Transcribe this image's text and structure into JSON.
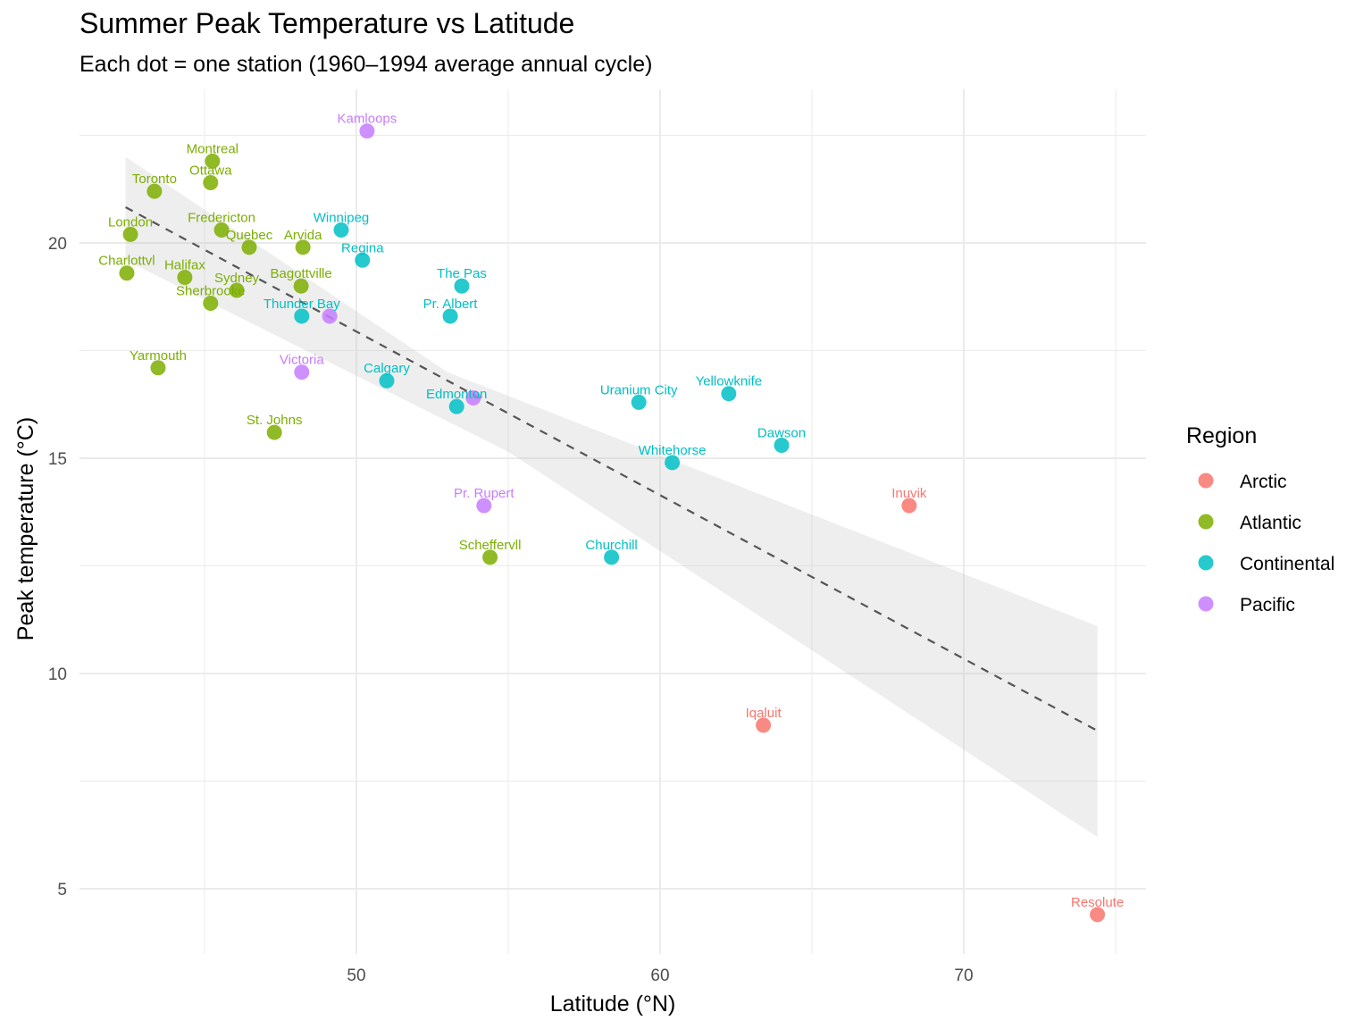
{
  "chart_data": {
    "type": "scatter",
    "title": "Summer Peak Temperature vs Latitude",
    "subtitle": "Each dot = one station (1960–1994 average annual cycle)",
    "xlabel": "Latitude (°N)",
    "ylabel": "Peak temperature (°C)",
    "xlim": [
      41.6,
      75.9
    ],
    "ylim": [
      3.5,
      23.3
    ],
    "xticks": [
      50,
      60,
      70
    ],
    "yticks": [
      5,
      10,
      15,
      20
    ],
    "grid": true,
    "legend": {
      "title": "Region",
      "position": "right",
      "entries": [
        {
          "name": "Arctic",
          "color": "#F8766D"
        },
        {
          "name": "Atlantic",
          "color": "#7CAE00"
        },
        {
          "name": "Continental",
          "color": "#00BFC4"
        },
        {
          "name": "Pacific",
          "color": "#C77CFF"
        }
      ]
    },
    "trend": {
      "style": "dashed linear fit with confidence band",
      "x": [
        42.4,
        74.4
      ],
      "y": [
        20.83,
        8.67
      ],
      "band_lower": [
        19.6,
        6.2
      ],
      "band_upper": [
        22.0,
        11.1
      ]
    },
    "points": [
      {
        "label": "Kamloops",
        "region": "Pacific",
        "x": 50.35,
        "y": 22.6
      },
      {
        "label": "Montreal",
        "region": "Atlantic",
        "x": 45.26,
        "y": 21.9
      },
      {
        "label": "Ottawa",
        "region": "Atlantic",
        "x": 45.2,
        "y": 21.4
      },
      {
        "label": "Toronto",
        "region": "Atlantic",
        "x": 43.35,
        "y": 21.2
      },
      {
        "label": "London",
        "region": "Atlantic",
        "x": 42.56,
        "y": 20.2
      },
      {
        "label": "Fredericton",
        "region": "Atlantic",
        "x": 45.56,
        "y": 20.3
      },
      {
        "label": "Quebec",
        "region": "Atlantic",
        "x": 46.47,
        "y": 19.9
      },
      {
        "label": "Arvida",
        "region": "Atlantic",
        "x": 48.24,
        "y": 19.9
      },
      {
        "label": "Winnipeg",
        "region": "Continental",
        "x": 49.5,
        "y": 20.3
      },
      {
        "label": "Regina",
        "region": "Continental",
        "x": 50.2,
        "y": 19.6
      },
      {
        "label": "Charlottvl",
        "region": "Atlantic",
        "x": 42.44,
        "y": 19.3
      },
      {
        "label": "Halifax",
        "region": "Atlantic",
        "x": 44.35,
        "y": 19.2
      },
      {
        "label": "Sydney",
        "region": "Atlantic",
        "x": 46.06,
        "y": 18.9
      },
      {
        "label": "Bagottville",
        "region": "Atlantic",
        "x": 48.18,
        "y": 19.0
      },
      {
        "label": "Sherbrooke",
        "region": "Atlantic",
        "x": 45.2,
        "y": 18.6
      },
      {
        "label": "Thunder Bay",
        "region": "Continental",
        "x": 48.2,
        "y": 18.3
      },
      {
        "label": "",
        "region": "Pacific",
        "x": 49.12,
        "y": 18.3
      },
      {
        "label": "The Pas",
        "region": "Continental",
        "x": 53.47,
        "y": 19.0
      },
      {
        "label": "Pr. Albert",
        "region": "Continental",
        "x": 53.09,
        "y": 18.3
      },
      {
        "label": "Yarmouth",
        "region": "Atlantic",
        "x": 43.47,
        "y": 17.1
      },
      {
        "label": "Victoria",
        "region": "Pacific",
        "x": 48.2,
        "y": 17.0
      },
      {
        "label": "Calgary",
        "region": "Continental",
        "x": 51.0,
        "y": 16.8
      },
      {
        "label": "Edmonton",
        "region": "Continental",
        "x": 53.3,
        "y": 16.2
      },
      {
        "label": "",
        "region": "Pacific",
        "x": 53.85,
        "y": 16.4
      },
      {
        "label": "Uranium City",
        "region": "Continental",
        "x": 59.3,
        "y": 16.3
      },
      {
        "label": "Yellowknife",
        "region": "Continental",
        "x": 62.26,
        "y": 16.5
      },
      {
        "label": "Dawson",
        "region": "Continental",
        "x": 64.0,
        "y": 15.3
      },
      {
        "label": "Whitehorse",
        "region": "Continental",
        "x": 60.4,
        "y": 14.9
      },
      {
        "label": "St. Johns",
        "region": "Atlantic",
        "x": 47.3,
        "y": 15.6
      },
      {
        "label": "Pr. Rupert",
        "region": "Pacific",
        "x": 54.2,
        "y": 13.9
      },
      {
        "label": "Inuvik",
        "region": "Arctic",
        "x": 68.2,
        "y": 13.9
      },
      {
        "label": "Scheffervll",
        "region": "Atlantic",
        "x": 54.4,
        "y": 12.7
      },
      {
        "label": "Churchill",
        "region": "Continental",
        "x": 58.4,
        "y": 12.7
      },
      {
        "label": "Iqaluit",
        "region": "Arctic",
        "x": 63.4,
        "y": 8.8
      },
      {
        "label": "Resolute",
        "region": "Arctic",
        "x": 74.4,
        "y": 4.4
      }
    ]
  }
}
